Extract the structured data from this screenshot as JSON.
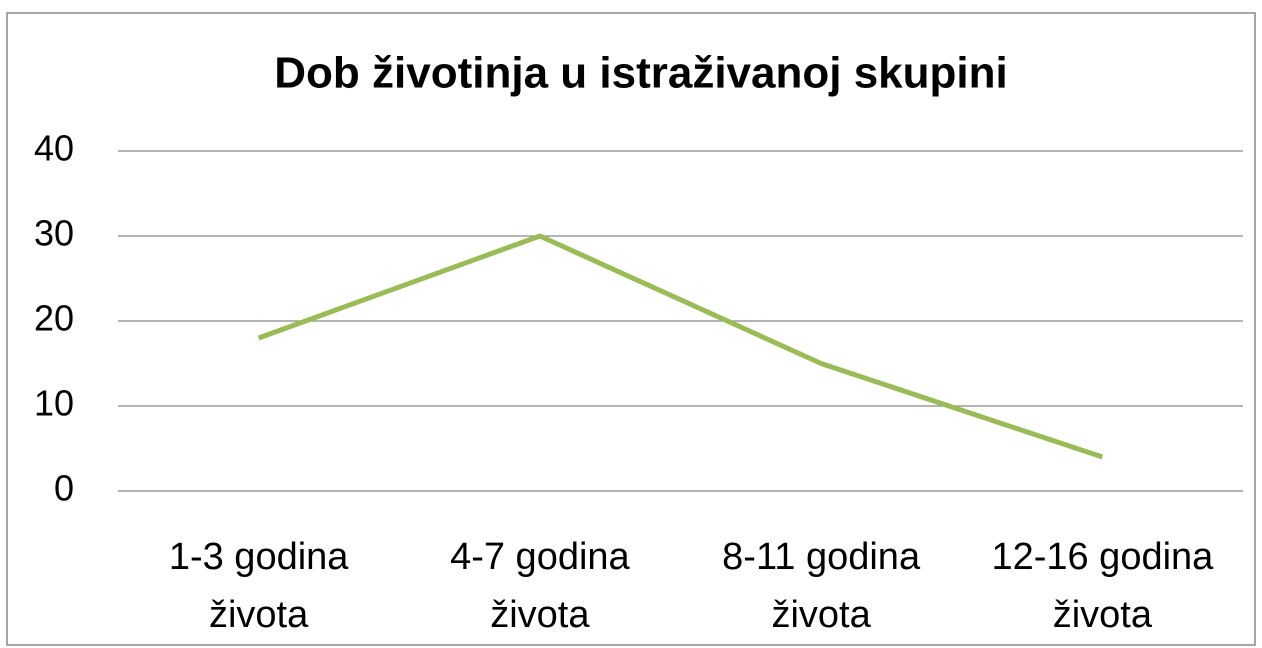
{
  "chart_data": {
    "type": "line",
    "title": "Dob životinja u istraživanoj skupini",
    "categories": [
      "1-3 godina života",
      "4-7 godina života",
      "8-11 godina života",
      "12-16 godina života"
    ],
    "values": [
      18,
      30,
      15,
      4
    ],
    "color": "#9bbb59",
    "ylim": [
      0,
      40
    ],
    "yticks": [
      0,
      10,
      20,
      30,
      40
    ],
    "grid": true
  }
}
